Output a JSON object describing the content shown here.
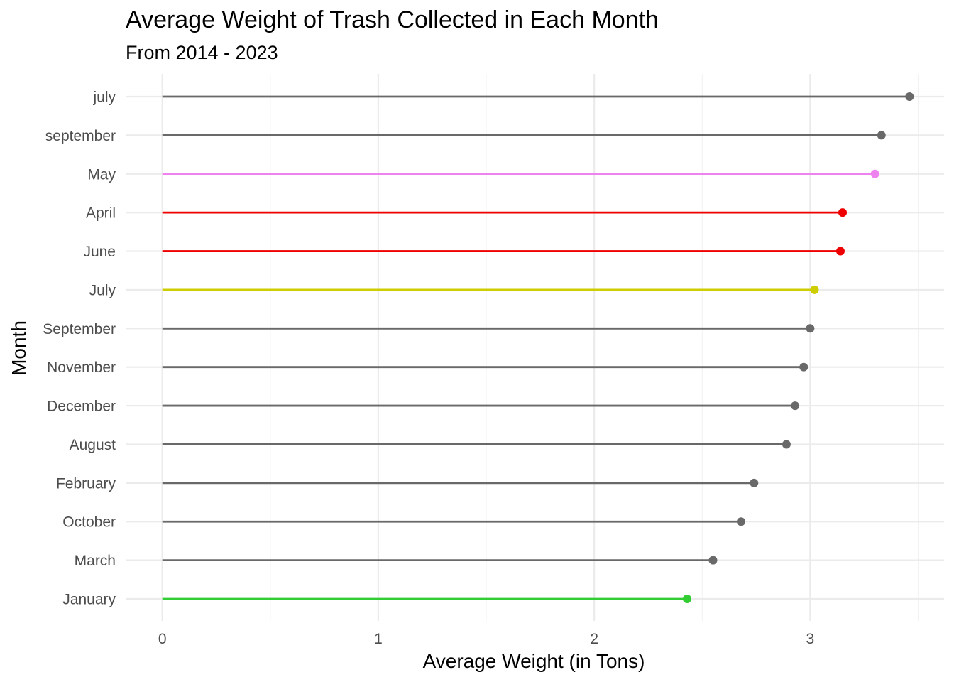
{
  "chart_data": {
    "type": "lollipop",
    "title": "Average Weight of Trash Collected in Each Month",
    "subtitle": "From 2014 - 2023",
    "xlabel": "Average Weight (in Tons)",
    "ylabel": "Month",
    "xlim": [
      -0.17,
      3.62
    ],
    "x_ticks": [
      0,
      1,
      2,
      3
    ],
    "x_tick_labels": [
      "0",
      "1",
      "2",
      "3"
    ],
    "x_minor_ticks": [
      0.5,
      1.5,
      2.5,
      3.5
    ],
    "grid": true,
    "legend": "none",
    "categories": [
      "January",
      "March",
      "October",
      "February",
      "August",
      "December",
      "November",
      "September",
      "July",
      "June",
      "April",
      "May",
      "september",
      "july"
    ],
    "values": [
      2.43,
      2.55,
      2.68,
      2.74,
      2.89,
      2.93,
      2.97,
      3.0,
      3.02,
      3.14,
      3.15,
      3.3,
      3.33,
      3.46
    ],
    "colors": [
      "#32cd32",
      "#696969",
      "#696969",
      "#696969",
      "#696969",
      "#696969",
      "#696969",
      "#696969",
      "#cdcd00",
      "#ee0000",
      "#ee0000",
      "#ee82ee",
      "#696969",
      "#696969"
    ]
  }
}
